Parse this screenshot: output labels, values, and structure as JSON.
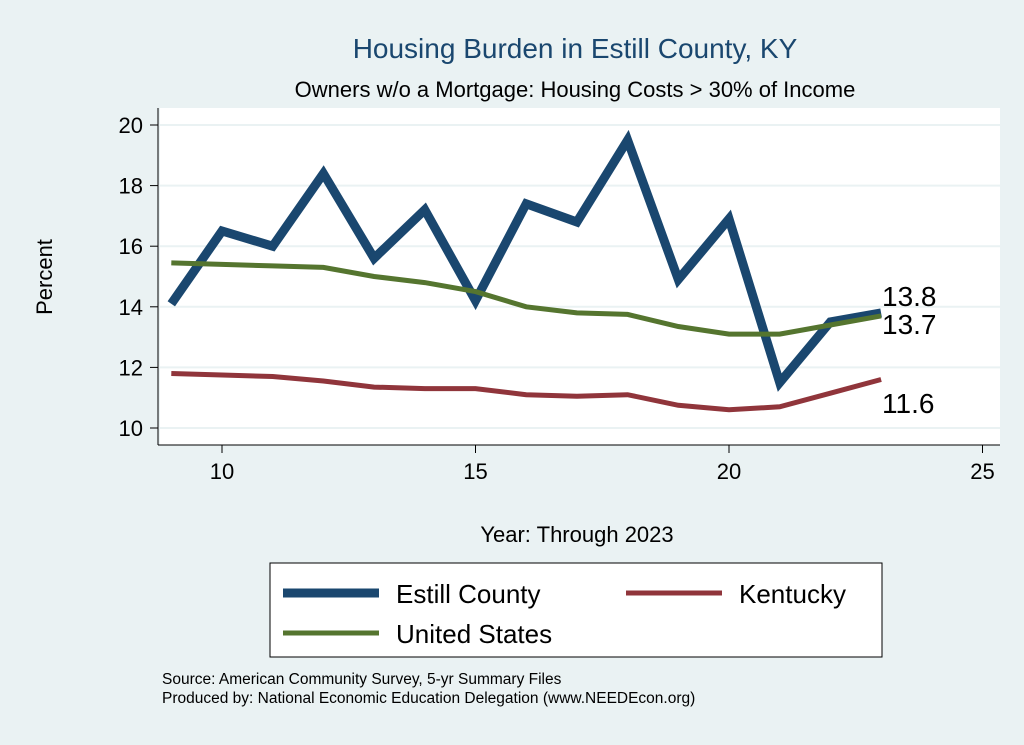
{
  "chart_data": {
    "type": "line",
    "title": "Housing Burden in Estill County, KY",
    "subtitle": "Owners w/o a Mortgage: Housing Costs > 30% of Income",
    "xlabel": "Year: Through 2023",
    "ylabel": "Percent",
    "xlim": [
      9,
      25
    ],
    "ylim": [
      10,
      20
    ],
    "xticks": [
      10,
      15,
      20,
      25
    ],
    "yticks": [
      10,
      12,
      14,
      16,
      18,
      20
    ],
    "grid": true,
    "legend_position": "bottom",
    "x": [
      9,
      10,
      11,
      12,
      13,
      14,
      15,
      16,
      17,
      18,
      19,
      20,
      21,
      22,
      23
    ],
    "series": [
      {
        "name": "Estill County",
        "color": "#1a476f",
        "width": 9,
        "end_label": "13.8",
        "values": [
          14.1,
          16.5,
          16.0,
          18.4,
          15.6,
          17.2,
          14.2,
          17.4,
          16.8,
          19.5,
          14.9,
          16.9,
          11.5,
          13.5,
          13.8
        ]
      },
      {
        "name": "Kentucky",
        "color": "#90353b",
        "width": 5,
        "end_label": "11.6",
        "values": [
          11.8,
          11.75,
          11.7,
          11.55,
          11.35,
          11.3,
          11.3,
          11.1,
          11.05,
          11.1,
          10.75,
          10.6,
          10.7,
          11.15,
          11.6
        ]
      },
      {
        "name": "United States",
        "color": "#55752f",
        "width": 5,
        "end_label": "13.7",
        "values": [
          15.45,
          15.4,
          15.35,
          15.3,
          15.0,
          14.8,
          14.5,
          14.0,
          13.8,
          13.75,
          13.35,
          13.1,
          13.1,
          13.4,
          13.7
        ]
      }
    ]
  },
  "notes": {
    "source": "Source: American Community Survey, 5-yr Summary Files",
    "produced": "Produced by: National Economic Education Delegation (www.NEEDEcon.org)"
  }
}
